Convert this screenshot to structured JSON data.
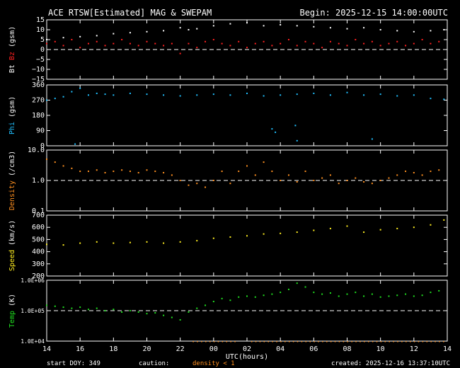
{
  "header": {
    "title": "ACE RTSW[Estimated] MAG & SWEPAM",
    "begin": "Begin: 2025-12-15 14:00:00UTC"
  },
  "footer": {
    "start_doy": "start DOY: 349",
    "caution": "caution:",
    "caution_note": "density < 1",
    "created": "created: 2025-12-16 13:37:10UTC"
  },
  "chart_data": [
    {
      "type": "scatter",
      "ylabel_parts": [
        {
          "text": "Bt",
          "color": "#ffffff"
        },
        {
          "text": "Bz",
          "color": "#ff2020"
        },
        {
          "text": "(gsm)",
          "color": "#ffffff"
        }
      ],
      "ylim": [
        -15,
        15
      ],
      "yscale": "linear",
      "yticks": [
        {
          "v": 15,
          "label": "15"
        },
        {
          "v": 10,
          "label": "10"
        },
        {
          "v": 5,
          "label": "5"
        },
        {
          "v": 0,
          "label": "0"
        },
        {
          "v": -5,
          "label": "−5"
        },
        {
          "v": -10,
          "label": "−10"
        },
        {
          "v": -15,
          "label": "−15"
        }
      ],
      "ref_line": 0,
      "series": [
        {
          "color": "#ffffff",
          "x": [
            0,
            1,
            2,
            3,
            4,
            5,
            6,
            7,
            8,
            8.5,
            9,
            10,
            11,
            12,
            13,
            14,
            15,
            16,
            17,
            18,
            19,
            20,
            21,
            22,
            23,
            23.8
          ],
          "y": [
            5,
            6,
            6.5,
            7,
            8,
            8.5,
            9,
            9.5,
            11,
            10,
            10.5,
            12,
            13,
            13.5,
            12,
            12.5,
            12,
            11.5,
            11,
            10.5,
            11,
            10,
            9.5,
            9,
            9.5,
            10
          ]
        },
        {
          "color": "#ff2020",
          "x": [
            0,
            0.5,
            1,
            1.5,
            2,
            2.5,
            3,
            3.5,
            4,
            4.5,
            5,
            5.5,
            6,
            6.5,
            7,
            7.5,
            8,
            8.5,
            9,
            9.5,
            10,
            10.5,
            11,
            11.5,
            12,
            12.5,
            13,
            13.5,
            14,
            14.5,
            15,
            15.5,
            16,
            16.5,
            17,
            17.5,
            18,
            18.5,
            19,
            19.5,
            20,
            20.5,
            21,
            21.5,
            22,
            22.5,
            23,
            23.5
          ],
          "y": [
            3,
            4,
            2,
            5,
            1,
            3,
            4,
            2,
            3,
            5,
            3,
            2,
            4,
            3,
            2,
            3,
            -2,
            3,
            1,
            4,
            5,
            3,
            2,
            4,
            1,
            3,
            4,
            2,
            3,
            5,
            2,
            4,
            3,
            1,
            4,
            3,
            2,
            5,
            3,
            4,
            2,
            3,
            4,
            2,
            3,
            5,
            3,
            4
          ]
        }
      ]
    },
    {
      "type": "scatter",
      "ylabel_parts": [
        {
          "text": "Phi",
          "color": "#20c0ff"
        },
        {
          "text": "(gsm)",
          "color": "#ffffff"
        }
      ],
      "ylim": [
        0,
        360
      ],
      "yscale": "linear",
      "yticks": [
        {
          "v": 360,
          "label": "360"
        },
        {
          "v": 270,
          "label": "270"
        },
        {
          "v": 180,
          "label": "180"
        },
        {
          "v": 90,
          "label": "90"
        },
        {
          "v": 0,
          "label": "0"
        }
      ],
      "series": [
        {
          "color": "#20c0ff",
          "x": [
            0,
            0.5,
            1,
            1.5,
            2,
            2.5,
            3,
            3.5,
            4,
            5,
            6,
            7,
            8,
            9,
            10,
            11,
            12,
            13,
            14,
            15,
            16,
            17,
            18,
            19,
            20,
            21,
            22,
            23,
            23.8
          ],
          "y": [
            270,
            280,
            290,
            320,
            340,
            300,
            310,
            305,
            300,
            310,
            305,
            300,
            295,
            300,
            305,
            300,
            310,
            295,
            300,
            305,
            310,
            300,
            315,
            300,
            305,
            295,
            300,
            280,
            275
          ]
        },
        {
          "color": "#20c0ff",
          "x": [
            1.7,
            13.5,
            13.7,
            14.9,
            15.0,
            19.5
          ],
          "y": [
            10,
            100,
            80,
            120,
            30,
            40
          ]
        }
      ]
    },
    {
      "type": "scatter",
      "ylabel_parts": [
        {
          "text": "Density",
          "color": "#ff9020"
        },
        {
          "text": "(/cm3)",
          "color": "#ffffff"
        }
      ],
      "ylim": [
        0.1,
        10
      ],
      "yscale": "log",
      "yticks": [
        {
          "v": 10,
          "label": "10.0"
        },
        {
          "v": 1,
          "label": "1.0"
        },
        {
          "v": 0.1,
          "label": "0.1"
        }
      ],
      "ref_line": 1,
      "series": [
        {
          "color": "#ff9020",
          "x": [
            0,
            0.5,
            1,
            1.5,
            2,
            2.5,
            3,
            3.5,
            4,
            4.5,
            5,
            5.5,
            6,
            6.5,
            7,
            7.5,
            8,
            8.5,
            9,
            9.5,
            10,
            10.5,
            11,
            11.5,
            12,
            12.5,
            13,
            13.5,
            14,
            14.5,
            15,
            15.5,
            16,
            16.5,
            17,
            17.5,
            18,
            18.5,
            19,
            19.5,
            20,
            20.5,
            21,
            21.5,
            22,
            22.5,
            23,
            23.5
          ],
          "y": [
            5,
            4,
            3,
            2.5,
            2,
            2,
            2.2,
            1.8,
            2,
            2.2,
            2,
            1.8,
            2.2,
            2,
            1.8,
            1.5,
            1,
            0.7,
            0.8,
            0.6,
            1,
            2,
            0.8,
            2,
            3,
            1.5,
            4,
            2,
            1,
            1.5,
            0.9,
            2,
            1,
            1.2,
            1.5,
            0.8,
            1,
            1.2,
            0.9,
            0.8,
            1,
            1.2,
            1.5,
            2,
            1.8,
            1.5,
            2,
            2.2
          ]
        }
      ]
    },
    {
      "type": "scatter",
      "ylabel_parts": [
        {
          "text": "Speed",
          "color": "#ffee20"
        },
        {
          "text": "(km/s)",
          "color": "#ffffff"
        }
      ],
      "ylim": [
        200,
        700
      ],
      "yscale": "linear",
      "yticks": [
        {
          "v": 700,
          "label": "700"
        },
        {
          "v": 600,
          "label": "600"
        },
        {
          "v": 500,
          "label": "500"
        },
        {
          "v": 400,
          "label": "400"
        },
        {
          "v": 300,
          "label": "300"
        },
        {
          "v": 200,
          "label": "200"
        }
      ],
      "series": [
        {
          "color": "#ffee20",
          "x": [
            0,
            1,
            2,
            3,
            4,
            5,
            6,
            7,
            8,
            9,
            10,
            11,
            12,
            13,
            14,
            15,
            16,
            17,
            18,
            19,
            20,
            21,
            22,
            23,
            23.8
          ],
          "y": [
            460,
            455,
            470,
            480,
            470,
            475,
            480,
            470,
            480,
            490,
            510,
            520,
            530,
            545,
            550,
            560,
            575,
            590,
            610,
            560,
            580,
            590,
            600,
            620,
            660
          ]
        }
      ]
    },
    {
      "type": "scatter",
      "ylabel_parts": [
        {
          "text": "Temp",
          "color": "#20e020"
        },
        {
          "text": "(K)",
          "color": "#ffffff"
        }
      ],
      "ylim": [
        10000,
        1000000
      ],
      "yscale": "log",
      "yticks": [
        {
          "v": 1000000,
          "label": "1.0E+06"
        },
        {
          "v": 100000,
          "label": "1.0E+05"
        },
        {
          "v": 10000,
          "label": "1.0E+04"
        }
      ],
      "ref_line": 100000,
      "series": [
        {
          "color": "#20e020",
          "x": [
            0,
            0.5,
            1,
            1.5,
            2,
            2.5,
            3,
            3.5,
            4,
            4.5,
            5,
            5.5,
            6,
            6.5,
            7,
            7.5,
            8,
            8.5,
            9,
            9.5,
            10,
            10.5,
            11,
            11.5,
            12,
            12.5,
            13,
            13.5,
            14,
            14.5,
            15,
            15.5,
            16,
            16.5,
            17,
            17.5,
            18,
            18.5,
            19,
            19.5,
            20,
            20.5,
            21,
            21.5,
            22,
            22.5,
            23,
            23.5
          ],
          "y": [
            150000,
            140000,
            130000,
            120000,
            130000,
            110000,
            120000,
            100000,
            110000,
            90000,
            100000,
            90000,
            80000,
            85000,
            70000,
            60000,
            50000,
            90000,
            120000,
            150000,
            200000,
            250000,
            220000,
            280000,
            300000,
            280000,
            320000,
            350000,
            400000,
            500000,
            800000,
            600000,
            400000,
            350000,
            380000,
            300000,
            350000,
            400000,
            300000,
            350000,
            280000,
            300000,
            320000,
            350000,
            300000,
            320000,
            400000,
            450000
          ]
        }
      ]
    }
  ],
  "xaxis": {
    "range_hours": [
      0,
      24
    ],
    "start_hour": 14,
    "tick_labels": [
      "14",
      "16",
      "18",
      "20",
      "22",
      "00",
      "02",
      "04",
      "06",
      "08",
      "10",
      "12",
      "14"
    ],
    "label": "UTC(hours)"
  }
}
